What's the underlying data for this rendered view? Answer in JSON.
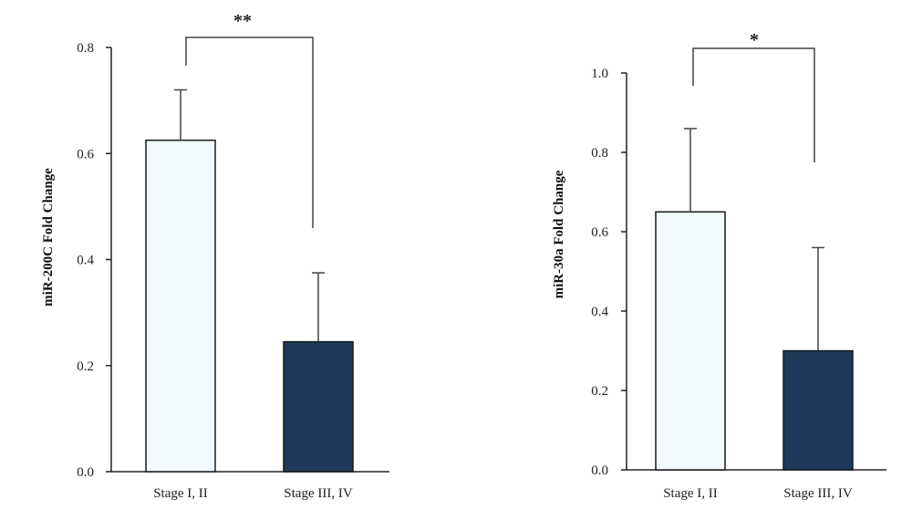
{
  "chart_data": [
    {
      "type": "bar",
      "categories": [
        "Stage I, II",
        "Stage III, IV"
      ],
      "values": [
        0.625,
        0.245
      ],
      "errors": [
        0.095,
        0.13
      ],
      "ylabel": "miR-200C Fold Change",
      "ylim": [
        0,
        0.8
      ],
      "yticks": [
        "0.0",
        "0.2",
        "0.4",
        "0.6",
        "0.8"
      ],
      "significance": "**",
      "bar_colors": [
        "#f3fafd",
        "#1d3a5c"
      ],
      "grid": false
    },
    {
      "type": "bar",
      "categories": [
        "Stage I, II",
        "Stage III, IV"
      ],
      "values": [
        0.65,
        0.3
      ],
      "errors": [
        0.21,
        0.26
      ],
      "ylabel": "miR-30a Fold Change",
      "ylim": [
        0,
        1.0
      ],
      "yticks": [
        "0.0",
        "0.2",
        "0.4",
        "0.6",
        "0.8",
        "1.0"
      ],
      "significance": "*",
      "bar_colors": [
        "#f3fafd",
        "#1d3a5c"
      ],
      "grid": false
    }
  ]
}
